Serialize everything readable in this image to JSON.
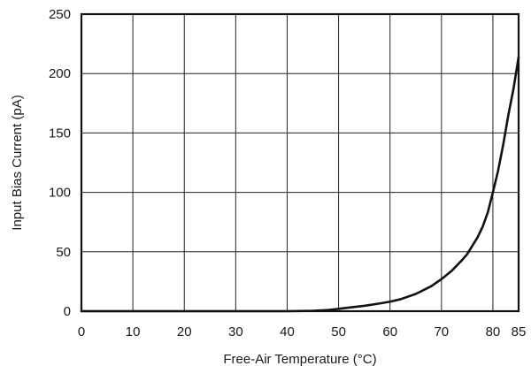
{
  "chart_data": {
    "type": "line",
    "title": "",
    "xlabel": "Free-Air Temperature (°C)",
    "ylabel": "Input Bias Current (pA)",
    "xlim": [
      0,
      85
    ],
    "ylim": [
      0,
      250
    ],
    "xticks": [
      0,
      10,
      20,
      30,
      40,
      50,
      60,
      70,
      80,
      85
    ],
    "xtick_labels": [
      "0",
      "10",
      "20",
      "30",
      "40",
      "50",
      "60",
      "70",
      "80",
      "85"
    ],
    "yticks": [
      0,
      50,
      100,
      150,
      200,
      250
    ],
    "ytick_labels": [
      "0",
      "50",
      "100",
      "150",
      "200",
      "250"
    ],
    "grid": true,
    "series": [
      {
        "x": [
          0,
          10,
          20,
          30,
          40,
          45,
          48,
          50,
          52,
          55,
          58,
          60,
          62,
          65,
          68,
          70,
          72,
          74,
          75,
          76,
          77,
          78,
          79,
          80,
          81,
          82,
          83,
          84,
          85
        ],
        "y": [
          0,
          0,
          0,
          0,
          0,
          0.3,
          1,
          2,
          3,
          4.5,
          6.5,
          8,
          10,
          14.5,
          21,
          27,
          34,
          43,
          48,
          55,
          62,
          71,
          83,
          100,
          118,
          140,
          165,
          187,
          214
        ],
        "color": "#111111"
      }
    ]
  }
}
